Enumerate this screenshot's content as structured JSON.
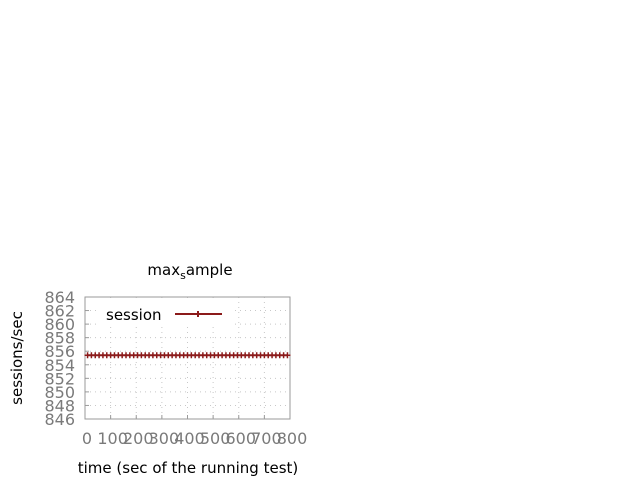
{
  "chart_data": {
    "type": "line",
    "title": "max",
    "title_subscript": "s",
    "title_suffix": "ample",
    "xlabel": "time (sec of the running test)",
    "ylabel": "sessions/sec",
    "xlim": [
      0,
      800
    ],
    "ylim": [
      846,
      864
    ],
    "x_ticks": [
      0,
      100,
      200,
      300,
      400,
      500,
      600,
      700,
      800
    ],
    "y_ticks": [
      846,
      848,
      850,
      852,
      854,
      856,
      858,
      860,
      862,
      864
    ],
    "grid": true,
    "legend_position": "top-left",
    "series": [
      {
        "name": "session",
        "color": "#8b1a1a",
        "x": [
          10,
          25,
          40,
          55,
          70,
          85,
          100,
          115,
          130,
          145,
          160,
          175,
          190,
          205,
          220,
          235,
          250,
          265,
          280,
          295,
          310,
          325,
          340,
          355,
          370,
          385,
          400,
          415,
          430,
          445,
          460,
          475,
          490,
          505,
          520,
          535,
          550,
          565,
          580,
          595,
          610,
          625,
          640,
          655,
          670,
          685,
          700,
          715,
          730,
          745,
          760,
          775,
          790
        ],
        "y": [
          855.4,
          855.4,
          855.4,
          855.4,
          855.4,
          855.4,
          855.4,
          855.4,
          855.4,
          855.4,
          855.4,
          855.4,
          855.4,
          855.4,
          855.4,
          855.4,
          855.4,
          855.4,
          855.4,
          855.4,
          855.4,
          855.4,
          855.4,
          855.4,
          855.4,
          855.4,
          855.4,
          855.4,
          855.4,
          855.4,
          855.4,
          855.4,
          855.4,
          855.4,
          855.4,
          855.4,
          855.4,
          855.4,
          855.4,
          855.4,
          855.4,
          855.4,
          855.4,
          855.4,
          855.4,
          855.4,
          855.4,
          855.4,
          855.4,
          855.4,
          855.4,
          855.4,
          855.4
        ]
      }
    ]
  }
}
